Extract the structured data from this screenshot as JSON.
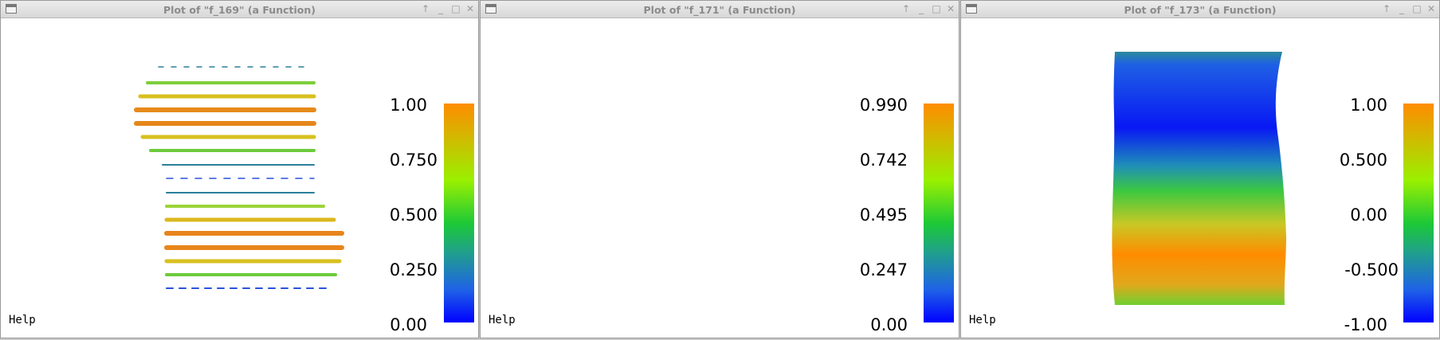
{
  "windows": [
    {
      "title": "Plot of \"f_169\" (a Function)",
      "help": "Help",
      "colorbar": [
        "1.00",
        "0.750",
        "0.500",
        "0.250",
        "0.00"
      ]
    },
    {
      "title": "Plot of \"f_171\" (a Function)",
      "help": "Help",
      "colorbar": [
        "0.990",
        "0.742",
        "0.495",
        "0.247",
        "0.00"
      ]
    },
    {
      "title": "Plot of \"f_173\" (a Function)",
      "help": "Help",
      "colorbar": [
        "1.00",
        "0.500",
        "0.00",
        "-0.500",
        "-1.00"
      ]
    }
  ],
  "titlebar_buttons": {
    "up": "↑",
    "minimize": "_",
    "maximize": "□",
    "close": "✕"
  }
}
